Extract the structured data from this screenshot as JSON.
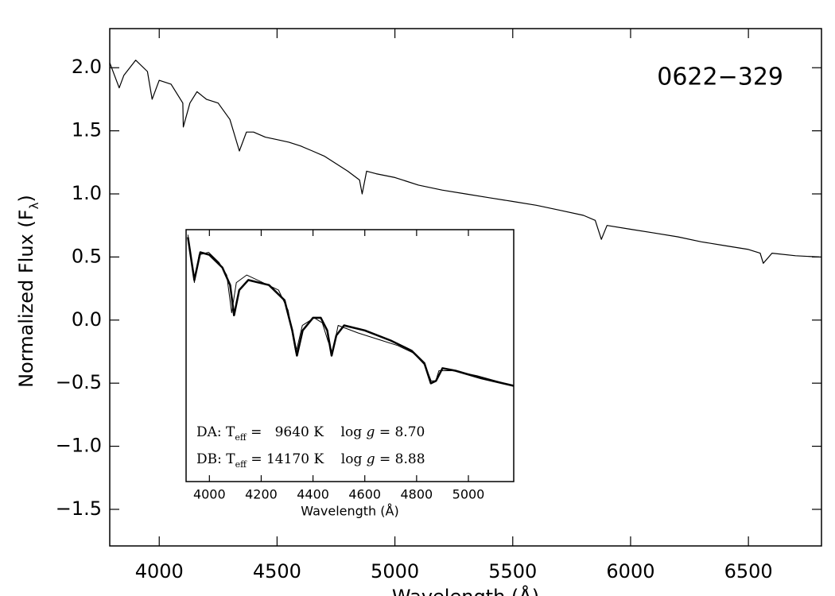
{
  "chart_data": [
    {
      "type": "line",
      "annotation": "0622−329",
      "x_label": "Wavelength (Å)",
      "y_label": [
        "Normalized Flux (F",
        "λ",
        ")"
      ],
      "xlim": [
        3790,
        6810
      ],
      "ylim": [
        -1.79,
        2.31
      ],
      "xticks": [
        4000,
        4500,
        5000,
        5500,
        6000,
        6500
      ],
      "yticks": [
        {
          "value": 2.0,
          "label": "2.0"
        },
        {
          "value": 1.5,
          "label": "1.5"
        },
        {
          "value": 1.0,
          "label": "1.0"
        },
        {
          "value": 0.5,
          "label": "0.5"
        },
        {
          "value": 0.0,
          "label": "0.0"
        },
        {
          "value": -0.5,
          "label": "−0.5"
        },
        {
          "value": -1.0,
          "label": "−1.0"
        },
        {
          "value": -1.5,
          "label": "−1.5"
        }
      ],
      "series": [
        {
          "color": "#000000",
          "x": [
            3790,
            3830,
            3850,
            3900,
            3950,
            3970,
            4000,
            4050,
            4100,
            4102,
            4130,
            4160,
            4200,
            4250,
            4300,
            4340,
            4370,
            4400,
            4450,
            4500,
            4550,
            4600,
            4650,
            4700,
            4750,
            4800,
            4850,
            4861,
            4880,
            4920,
            5000,
            5100,
            5200,
            5300,
            5400,
            5500,
            5600,
            5700,
            5800,
            5850,
            5876,
            5900,
            6000,
            6100,
            6200,
            6300,
            6400,
            6500,
            6550,
            6563,
            6600,
            6700,
            6800
          ],
          "values": [
            2.04,
            1.84,
            1.94,
            2.06,
            1.97,
            1.75,
            1.9,
            1.87,
            1.72,
            1.53,
            1.72,
            1.81,
            1.75,
            1.72,
            1.59,
            1.34,
            1.49,
            1.49,
            1.45,
            1.43,
            1.41,
            1.38,
            1.34,
            1.3,
            1.24,
            1.18,
            1.11,
            1.0,
            1.18,
            1.16,
            1.13,
            1.07,
            1.03,
            1.0,
            0.97,
            0.94,
            0.91,
            0.87,
            0.83,
            0.79,
            0.64,
            0.75,
            0.72,
            0.69,
            0.66,
            0.62,
            0.59,
            0.56,
            0.53,
            0.45,
            0.53,
            0.51,
            0.5
          ]
        }
      ]
    },
    {
      "type": "line",
      "x_label": "Wavelength (Å)",
      "annotations": [
        [
          "DA: T",
          "eff",
          " =   9640 K    log ",
          "g",
          " = 8.70"
        ],
        [
          "DB: T",
          "eff",
          " = 14170 K    log ",
          "g",
          " = 8.88"
        ]
      ],
      "xlim": [
        3910,
        5175
      ],
      "ylim": [
        0,
        1
      ],
      "xticks": [
        4000,
        4200,
        4400,
        4600,
        4800,
        5000
      ],
      "series": [
        {
          "color": "#000000",
          "width": 1,
          "x": [
            3917,
            3942,
            3960,
            3997,
            4037,
            4067,
            4086,
            4104,
            4144,
            4206,
            4267,
            4304,
            4334,
            4359,
            4405,
            4436,
            4457,
            4475,
            4497,
            4574,
            4666,
            4727,
            4788,
            4834,
            4856,
            4874,
            4886,
            4942,
            5034,
            5175
          ],
          "values": [
            0.98,
            0.79,
            0.9,
            0.91,
            0.87,
            0.82,
            0.67,
            0.79,
            0.82,
            0.79,
            0.76,
            0.68,
            0.51,
            0.62,
            0.65,
            0.63,
            0.56,
            0.51,
            0.62,
            0.59,
            0.56,
            0.54,
            0.51,
            0.46,
            0.4,
            0.4,
            0.44,
            0.44,
            0.42,
            0.38
          ]
        },
        {
          "color": "#000000",
          "width": 2.5,
          "x": [
            3917,
            3942,
            3965,
            4000,
            4050,
            4080,
            4095,
            4115,
            4150,
            4230,
            4290,
            4320,
            4338,
            4360,
            4400,
            4430,
            4455,
            4472,
            4490,
            4520,
            4600,
            4700,
            4780,
            4830,
            4855,
            4875,
            4900,
            4950,
            5050,
            5175
          ],
          "values": [
            0.97,
            0.8,
            0.91,
            0.9,
            0.85,
            0.78,
            0.66,
            0.76,
            0.8,
            0.78,
            0.72,
            0.6,
            0.5,
            0.6,
            0.65,
            0.65,
            0.6,
            0.5,
            0.58,
            0.62,
            0.6,
            0.56,
            0.52,
            0.47,
            0.39,
            0.4,
            0.45,
            0.44,
            0.41,
            0.38
          ]
        }
      ]
    }
  ]
}
